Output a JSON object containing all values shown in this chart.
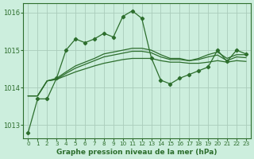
{
  "title": "Graphe pression niveau de la mer (hPa)",
  "background_color": "#cceedd",
  "grid_color": "#aaccbb",
  "line_color": "#2d6e2d",
  "xlim": [
    -0.5,
    23.5
  ],
  "ylim": [
    1012.65,
    1016.25
  ],
  "yticks": [
    1013,
    1014,
    1015,
    1016
  ],
  "xticks": [
    0,
    1,
    2,
    3,
    4,
    5,
    6,
    7,
    8,
    9,
    10,
    11,
    12,
    13,
    14,
    15,
    16,
    17,
    18,
    19,
    20,
    21,
    22,
    23
  ],
  "series_main": [
    1012.8,
    1013.7,
    1013.7,
    1014.25,
    1015.0,
    1015.3,
    1015.2,
    1015.3,
    1015.45,
    1015.35,
    1015.9,
    1016.05,
    1015.85,
    1014.8,
    1014.2,
    1014.1,
    1014.25,
    1014.35,
    1014.45,
    1014.55,
    1015.0,
    1014.7,
    1015.0,
    1014.9
  ],
  "series_smooth": [
    [
      1013.78,
      1013.78,
      1014.18,
      1014.22,
      1014.32,
      1014.42,
      1014.5,
      1014.58,
      1014.65,
      1014.7,
      1014.75,
      1014.78,
      1014.78,
      1014.78,
      1014.72,
      1014.68,
      1014.68,
      1014.65,
      1014.65,
      1014.68,
      1014.72,
      1014.68,
      1014.72,
      1014.7
    ],
    [
      1013.78,
      1013.78,
      1014.18,
      1014.22,
      1014.38,
      1014.52,
      1014.62,
      1014.72,
      1014.82,
      1014.87,
      1014.92,
      1014.97,
      1014.97,
      1014.93,
      1014.82,
      1014.75,
      1014.75,
      1014.72,
      1014.75,
      1014.82,
      1014.87,
      1014.72,
      1014.82,
      1014.8
    ],
    [
      1013.78,
      1013.78,
      1014.18,
      1014.25,
      1014.42,
      1014.58,
      1014.68,
      1014.78,
      1014.9,
      1014.95,
      1015.0,
      1015.05,
      1015.05,
      1015.0,
      1014.88,
      1014.78,
      1014.78,
      1014.72,
      1014.78,
      1014.88,
      1014.95,
      1014.78,
      1014.88,
      1014.88
    ]
  ]
}
